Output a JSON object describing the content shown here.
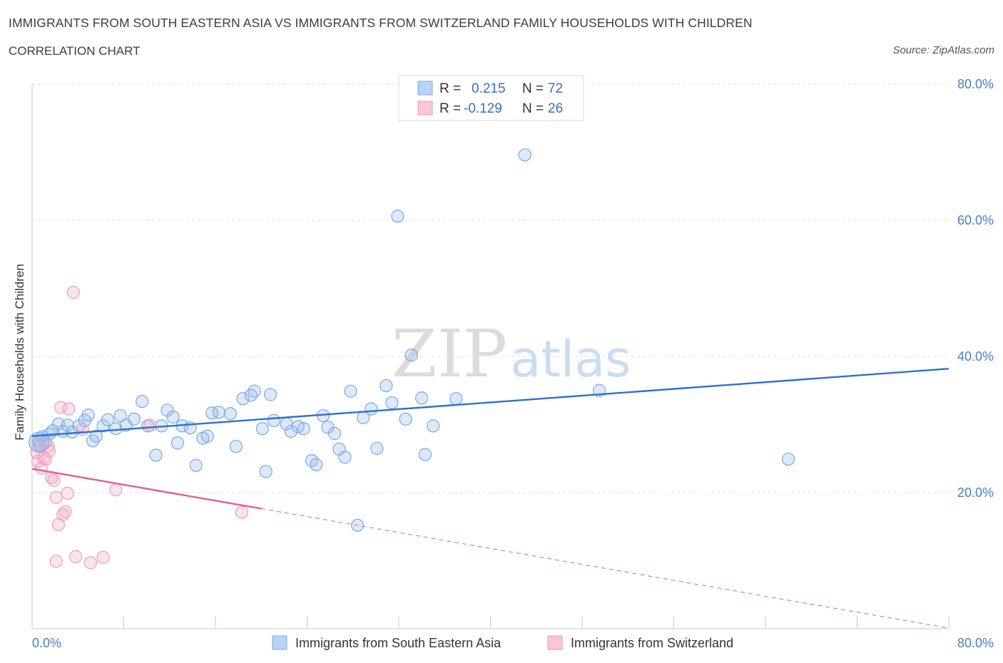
{
  "title": "IMMIGRANTS FROM SOUTH EASTERN ASIA VS IMMIGRANTS FROM SWITZERLAND FAMILY HOUSEHOLDS WITH CHILDREN",
  "subtitle": "CORRELATION CHART",
  "source": "Source: ZipAtlas.com",
  "watermark": {
    "zip": "ZIP",
    "atlas": "atlas"
  },
  "chart_data": {
    "type": "scatter",
    "title": "IMMIGRANTS FROM SOUTH EASTERN ASIA VS IMMIGRANTS FROM SWITZERLAND FAMILY HOUSEHOLDS WITH CHILDREN",
    "xlabel": "",
    "ylabel": "Family Households with Children",
    "xlim": [
      0,
      80
    ],
    "ylim": [
      0,
      80
    ],
    "x_ticks": [
      "0.0%",
      "80.0%"
    ],
    "y_ticks": [
      {
        "value": 20,
        "label": "20.0%"
      },
      {
        "value": 40,
        "label": "40.0%"
      },
      {
        "value": 60,
        "label": "60.0%"
      },
      {
        "value": 80,
        "label": "80.0%"
      }
    ],
    "grid": true,
    "legend_position": "top-center",
    "series": [
      {
        "name": "Immigrants from South Eastern Asia",
        "color": "#6fa0e6",
        "line_color": "#2f6fd0",
        "R": "0.215",
        "N": "72",
        "trend": {
          "x0": 0,
          "y0": 28.3,
          "x1": 80,
          "y1": 38.2,
          "dashed_from": null
        },
        "points": [
          [
            0.6,
            27.6
          ],
          [
            0.9,
            28.2
          ],
          [
            0.7,
            26.9
          ],
          [
            1.2,
            27.4
          ],
          [
            1.5,
            28.6
          ],
          [
            1.8,
            29.1
          ],
          [
            2.3,
            30.1
          ],
          [
            2.7,
            29.0
          ],
          [
            3.1,
            29.9
          ],
          [
            3.5,
            28.9
          ],
          [
            4.1,
            29.8
          ],
          [
            4.6,
            30.6
          ],
          [
            4.9,
            31.4
          ],
          [
            5.3,
            27.6
          ],
          [
            5.6,
            28.3
          ],
          [
            6.2,
            29.8
          ],
          [
            6.6,
            30.7
          ],
          [
            7.3,
            29.4
          ],
          [
            7.7,
            31.3
          ],
          [
            8.2,
            29.9
          ],
          [
            8.9,
            30.8
          ],
          [
            9.6,
            33.4
          ],
          [
            10.1,
            29.8
          ],
          [
            10.8,
            25.5
          ],
          [
            11.3,
            29.8
          ],
          [
            11.8,
            32.1
          ],
          [
            12.3,
            31.1
          ],
          [
            12.7,
            27.3
          ],
          [
            13.1,
            29.8
          ],
          [
            13.8,
            29.5
          ],
          [
            14.3,
            24.0
          ],
          [
            14.9,
            28.0
          ],
          [
            15.3,
            28.3
          ],
          [
            15.7,
            31.7
          ],
          [
            16.3,
            31.8
          ],
          [
            17.3,
            31.6
          ],
          [
            17.8,
            26.8
          ],
          [
            18.4,
            33.8
          ],
          [
            19.1,
            34.3
          ],
          [
            19.4,
            34.9
          ],
          [
            20.1,
            29.4
          ],
          [
            20.4,
            23.1
          ],
          [
            20.8,
            34.4
          ],
          [
            21.1,
            30.6
          ],
          [
            22.2,
            30.1
          ],
          [
            22.6,
            29.0
          ],
          [
            23.2,
            29.7
          ],
          [
            23.7,
            29.4
          ],
          [
            24.4,
            24.7
          ],
          [
            24.8,
            24.1
          ],
          [
            25.4,
            31.3
          ],
          [
            25.8,
            29.6
          ],
          [
            26.4,
            28.7
          ],
          [
            26.8,
            26.4
          ],
          [
            27.3,
            25.2
          ],
          [
            27.8,
            34.9
          ],
          [
            28.4,
            15.2
          ],
          [
            28.9,
            31.0
          ],
          [
            29.6,
            32.3
          ],
          [
            30.1,
            26.5
          ],
          [
            30.9,
            35.7
          ],
          [
            31.4,
            33.2
          ],
          [
            31.9,
            60.6
          ],
          [
            32.6,
            30.8
          ],
          [
            33.1,
            40.2
          ],
          [
            34.0,
            33.9
          ],
          [
            34.3,
            25.6
          ],
          [
            35.0,
            29.8
          ],
          [
            37.0,
            33.8
          ],
          [
            43.0,
            69.6
          ],
          [
            49.5,
            35.0
          ],
          [
            66.0,
            24.9
          ]
        ]
      },
      {
        "name": "Immigrants from Switzerland",
        "color": "#f29bb8",
        "line_color": "#e0608e",
        "R": "-0.129",
        "N": "26",
        "trend": {
          "x0": 0,
          "y0": 23.5,
          "x1": 80,
          "y1": 0.1,
          "solid_until": 20
        },
        "points": [
          [
            0.4,
            25.9
          ],
          [
            0.5,
            24.6
          ],
          [
            0.6,
            27.2
          ],
          [
            0.8,
            23.6
          ],
          [
            1.0,
            25.1
          ],
          [
            1.2,
            24.9
          ],
          [
            1.4,
            26.8
          ],
          [
            1.7,
            22.2
          ],
          [
            1.9,
            21.8
          ],
          [
            1.5,
            26.1
          ],
          [
            2.1,
            19.3
          ],
          [
            2.5,
            32.5
          ],
          [
            2.7,
            16.8
          ],
          [
            2.3,
            15.3
          ],
          [
            2.9,
            17.2
          ],
          [
            3.1,
            19.9
          ],
          [
            3.2,
            32.3
          ],
          [
            2.1,
            9.9
          ],
          [
            3.6,
            49.4
          ],
          [
            3.8,
            10.6
          ],
          [
            4.4,
            29.3
          ],
          [
            5.1,
            9.7
          ],
          [
            6.2,
            10.5
          ],
          [
            7.3,
            20.4
          ],
          [
            10.3,
            29.9
          ],
          [
            18.3,
            17.1
          ]
        ]
      }
    ]
  }
}
